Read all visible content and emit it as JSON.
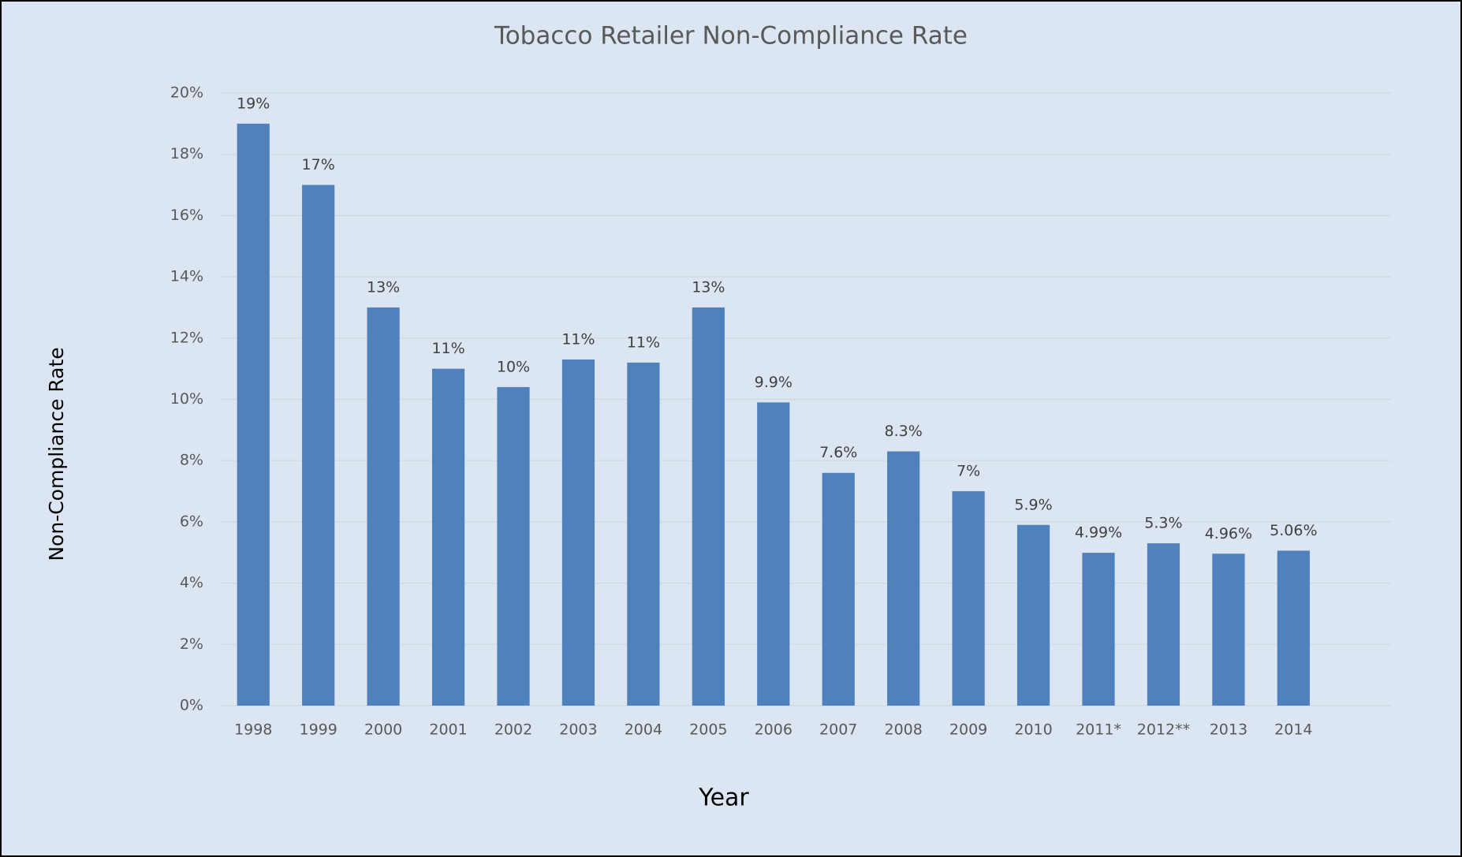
{
  "chart_data": {
    "type": "bar",
    "title": "Tobacco Retailer Non-Compliance Rate",
    "x_label": "Year",
    "y_label": "Non-Compliance  Rate",
    "categories": [
      "1998",
      "1999",
      "2000",
      "2001",
      "2002",
      "2003",
      "2004",
      "2005",
      "2006",
      "2007",
      "2008",
      "2009",
      "2010",
      "2011*",
      "2012**",
      "2013",
      "2014"
    ],
    "values": [
      19,
      17,
      13,
      11,
      10.4,
      11.3,
      11.2,
      13,
      9.9,
      7.6,
      8.3,
      7,
      5.9,
      4.99,
      5.3,
      4.96,
      5.06
    ],
    "value_labels": [
      "19%",
      "17%",
      "13%",
      "11%",
      "10%",
      "11%",
      "11%",
      "13%",
      "9.9%",
      "7.6%",
      "8.3%",
      "7%",
      "5.9%",
      "4.99%",
      "5.3%",
      "4.96%",
      "5.06%"
    ],
    "color": "#4f81bd",
    "ylim": [
      0,
      20
    ],
    "yticks": [
      {
        "value": 0,
        "label": "0%"
      },
      {
        "value": 2,
        "label": "2%"
      },
      {
        "value": 4,
        "label": "4%"
      },
      {
        "value": 6,
        "label": "6%"
      },
      {
        "value": 8,
        "label": "8%"
      },
      {
        "value": 10,
        "label": "10%"
      },
      {
        "value": 12,
        "label": "12%"
      },
      {
        "value": 14,
        "label": "14%"
      },
      {
        "value": 16,
        "label": "16%"
      },
      {
        "value": 18,
        "label": "18%"
      },
      {
        "value": 20,
        "label": "20%"
      }
    ],
    "grid": true
  }
}
